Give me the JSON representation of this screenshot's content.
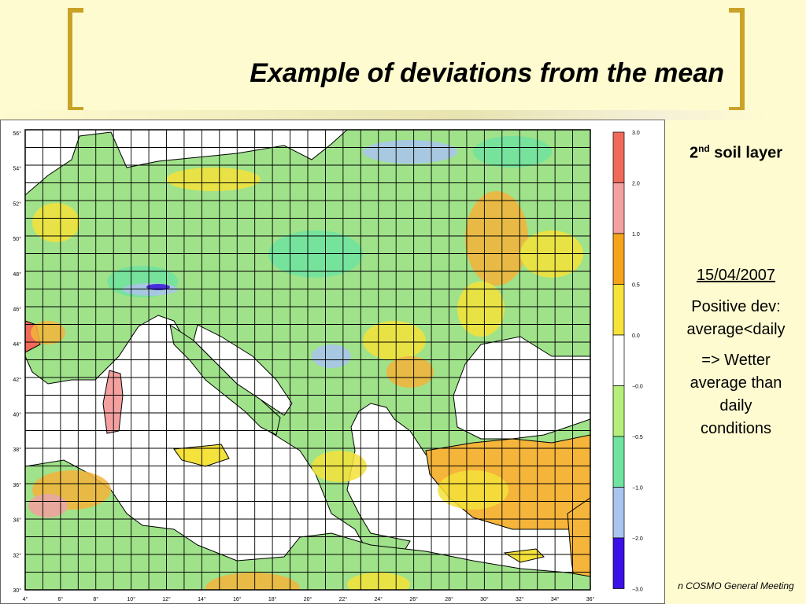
{
  "slide": {
    "title": "Example of deviations from the mean",
    "layer_num": "2",
    "layer_sup": "nd",
    "layer_rest": " soil layer",
    "date": "15/04/2007",
    "positive_dev": "Positive dev:",
    "comparison": "average<daily",
    "conclusion_1": "=> Wetter",
    "conclusion_2": "average than",
    "conclusion_3": "daily",
    "conclusion_4": "conditions",
    "footer": "n COSMO General Meeting"
  },
  "map": {
    "lat_labels": [
      "56°",
      "54°",
      "52°",
      "50°",
      "48°",
      "46°",
      "44°",
      "42°",
      "40°",
      "38°",
      "36°",
      "34°",
      "32°",
      "30°"
    ],
    "lon_labels": [
      "4°",
      "6°",
      "8°",
      "10°",
      "12°",
      "14°",
      "16°",
      "18°",
      "20°",
      "22°",
      "24°",
      "26°",
      "28°",
      "30°",
      "32°",
      "34°",
      "36°"
    ],
    "legend": [
      {
        "label": "3.0",
        "color": "#f06a5a"
      },
      {
        "label": "2.0",
        "color": "#f4a0a0"
      },
      {
        "label": "1.0",
        "color": "#f5a31a"
      },
      {
        "label": "0.5",
        "color": "#f5e23a"
      },
      {
        "label": "0.0",
        "color": "#ffffff"
      },
      {
        "label": "−0.0",
        "color": "#b5ef7a"
      },
      {
        "label": "−0.5",
        "color": "#6fe3a0"
      },
      {
        "label": "−1.0",
        "color": "#a9c4ef"
      },
      {
        "label": "−2.0",
        "color": "#3a10e6"
      },
      {
        "label": "−3.0",
        "color": ""
      }
    ]
  },
  "colors": {
    "land": "#9fe28a",
    "sea": "#ffffff",
    "bracket": "#c9a227",
    "warm": "#f5b43a",
    "grid": "#000000"
  }
}
